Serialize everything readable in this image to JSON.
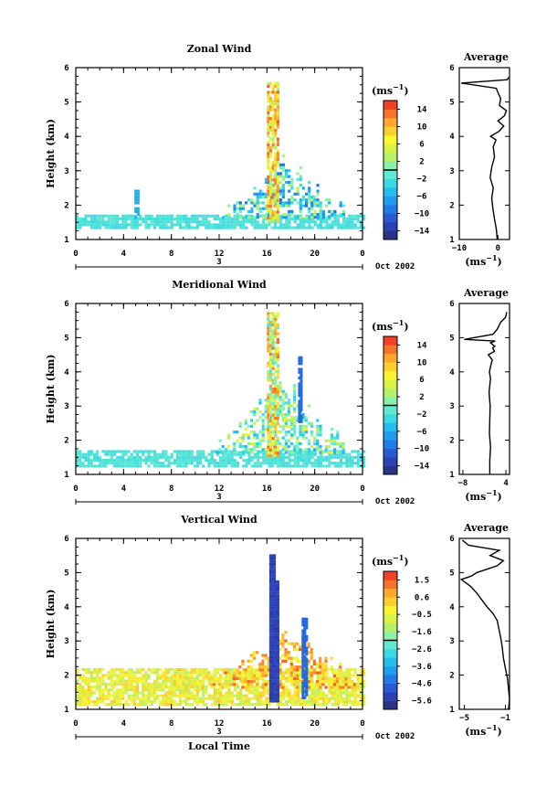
{
  "chart_data": [
    {
      "type": "heatmap",
      "title": "Zonal Wind",
      "ylabel": "Height (km)",
      "xlabel": "",
      "xlim": [
        0,
        24
      ],
      "ylim": [
        1,
        6
      ],
      "x_ticks": [
        "0",
        "4",
        "8",
        "12",
        "16",
        "20",
        "0"
      ],
      "y_ticks": [
        "1",
        "2",
        "3",
        "4",
        "5",
        "6"
      ],
      "date_day": "3",
      "date_label": "Oct 2002",
      "colorbar": {
        "unit": "(ms",
        "unit_sup": "−1",
        "unit_close": ")",
        "labels": [
          "14",
          "10",
          "6",
          "2",
          "−2",
          "−6",
          "−10",
          "−14"
        ],
        "range": [
          -16,
          16
        ]
      },
      "approx_field": {
        "base_layer": {
          "x": [
            0,
            24
          ],
          "y": [
            1.3,
            1.65
          ],
          "value": -2
        },
        "convective_region": {
          "x": [
            11.5,
            22.5
          ],
          "top_km": 3.5,
          "value_range": [
            -10,
            4
          ]
        },
        "isolated_patch": {
          "x": [
            4.9,
            5.3
          ],
          "y": [
            1.6,
            2.4
          ],
          "value": -6
        },
        "core_column": {
          "x": [
            16.0,
            16.9
          ],
          "y": [
            1.5,
            5.5
          ],
          "value_range": [
            2,
            14
          ]
        }
      },
      "average_profile": {
        "title": "Average",
        "xlabel": "(ms",
        "xlabel_sup": "−1",
        "xlabel_close": ")",
        "xlim": [
          -10,
          3
        ],
        "x_ticks": [
          "−10",
          "0"
        ],
        "y_ticks": [
          "1",
          "2",
          "3",
          "4",
          "5",
          "6"
        ],
        "ylim": [
          1,
          6
        ],
        "x": [
          -0.2,
          -0.4,
          -0.9,
          -1.3,
          -1.6,
          -1.2,
          -2.0,
          -1.6,
          -0.9,
          -1.2,
          -0.5,
          -1.9,
          0.3,
          1.5,
          0.0,
          1.7,
          2.2,
          0.4,
          0.7,
          -0.1,
          -0.4,
          -9.5,
          2.4,
          2.8
        ],
        "y": [
          1.0,
          1.3,
          1.6,
          1.9,
          2.2,
          2.5,
          2.8,
          3.1,
          3.4,
          3.7,
          3.9,
          4.0,
          4.15,
          4.3,
          4.45,
          4.6,
          4.75,
          4.9,
          5.1,
          5.3,
          5.4,
          5.55,
          5.65,
          5.72
        ]
      }
    },
    {
      "type": "heatmap",
      "title": "Meridional Wind",
      "ylabel": "Height (km)",
      "xlabel": "",
      "xlim": [
        0,
        24
      ],
      "ylim": [
        1,
        6
      ],
      "x_ticks": [
        "0",
        "4",
        "8",
        "12",
        "16",
        "20",
        "0"
      ],
      "y_ticks": [
        "1",
        "2",
        "3",
        "4",
        "5",
        "6"
      ],
      "date_day": "3",
      "date_label": "Oct 2002",
      "colorbar": {
        "unit": "(ms",
        "unit_sup": "−1",
        "unit_close": ")",
        "labels": [
          "14",
          "10",
          "6",
          "2",
          "−2",
          "−6",
          "−10",
          "−14"
        ],
        "range": [
          -16,
          16
        ]
      },
      "approx_field": {
        "base_layer": {
          "x": [
            0,
            24
          ],
          "y": [
            1.2,
            1.7
          ],
          "value": -2
        },
        "convective_region": {
          "x": [
            11.0,
            22.5
          ],
          "top_km": 4.0,
          "value_range": [
            -6,
            6
          ]
        },
        "core_column": {
          "x": [
            16.0,
            16.8
          ],
          "y": [
            1.5,
            5.7
          ],
          "value_range": [
            -2,
            14
          ]
        },
        "blue_streak": {
          "x": [
            18.6,
            18.9
          ],
          "y": [
            2.5,
            4.4
          ],
          "value": -10
        }
      },
      "average_profile": {
        "title": "Average",
        "xlabel": "(ms",
        "xlabel_sup": "−1",
        "xlabel_close": ")",
        "xlim": [
          -9,
          5
        ],
        "x_ticks": [
          "−8",
          "4"
        ],
        "y_ticks": [
          "1",
          "2",
          "3",
          "4",
          "5",
          "6"
        ],
        "ylim": [
          1,
          6
        ],
        "x": [
          -0.5,
          -0.5,
          -0.3,
          -0.6,
          -0.5,
          -0.4,
          -0.7,
          -0.3,
          -0.6,
          -0.2,
          0.2,
          -0.9,
          0.8,
          0.3,
          0.9,
          -0.3,
          1.0,
          -7.6,
          0.4,
          1.6,
          2.5,
          3.9,
          4.2
        ],
        "y": [
          1.0,
          1.4,
          1.8,
          2.2,
          2.6,
          3.0,
          3.4,
          3.8,
          4.0,
          4.2,
          4.35,
          4.5,
          4.6,
          4.7,
          4.75,
          4.85,
          4.9,
          4.95,
          5.1,
          5.25,
          5.45,
          5.6,
          5.75
        ]
      }
    },
    {
      "type": "heatmap",
      "title": "Vertical Wind",
      "ylabel": "Height (km)",
      "xlabel": "Local Time",
      "xlim": [
        0,
        24
      ],
      "ylim": [
        1,
        6
      ],
      "x_ticks": [
        "0",
        "4",
        "8",
        "12",
        "16",
        "20",
        "0"
      ],
      "y_ticks": [
        "1",
        "2",
        "3",
        "4",
        "5",
        "6"
      ],
      "date_day": "3",
      "date_label": "Oct 2002",
      "colorbar": {
        "unit": "(ms",
        "unit_sup": "−1",
        "unit_close": ")",
        "labels": [
          "1.5",
          "0.6",
          "−0.5",
          "−1.6",
          "−2.6",
          "−3.6",
          "−4.6",
          "−5.6"
        ],
        "range": [
          -6.1,
          2.0
        ]
      },
      "approx_field": {
        "base_layer": {
          "x": [
            0,
            24
          ],
          "y": [
            1.1,
            2.2
          ],
          "value": -0.5
        },
        "convective_region": {
          "x": [
            10.5,
            23.5
          ],
          "top_km": 3.6,
          "value_range": [
            -0.5,
            1.5
          ]
        },
        "downdraft_column": {
          "x": [
            16.2,
            16.8
          ],
          "y": [
            1.2,
            5.5
          ],
          "value": -5.6
        },
        "blue_streak": {
          "x": [
            18.9,
            19.2
          ],
          "y": [
            1.3,
            3.6
          ],
          "value": -4.6
        }
      },
      "average_profile": {
        "title": "Average",
        "xlabel": "(ms",
        "xlabel_sup": "−1",
        "xlabel_close": ")",
        "xlim": [
          -5.5,
          -0.6
        ],
        "x_ticks": [
          "−5",
          "−1"
        ],
        "y_ticks": [
          "1",
          "2",
          "3",
          "4",
          "5",
          "6"
        ],
        "ylim": [
          1,
          6
        ],
        "x": [
          -0.7,
          -0.6,
          -0.7,
          -0.8,
          -1.0,
          -1.2,
          -1.3,
          -1.4,
          -1.6,
          -1.8,
          -2.2,
          -2.8,
          -3.3,
          -3.8,
          -4.4,
          -5.3,
          -4.3,
          -3.8,
          -2.8,
          -1.8,
          -1.2,
          -2.5,
          -1.6,
          -4.6,
          -5.2
        ],
        "y": [
          1.0,
          1.3,
          1.6,
          1.9,
          2.2,
          2.5,
          2.8,
          3.0,
          3.3,
          3.6,
          3.8,
          4.0,
          4.2,
          4.4,
          4.6,
          4.8,
          4.9,
          5.0,
          5.1,
          5.2,
          5.35,
          5.5,
          5.65,
          5.8,
          5.95
        ]
      }
    }
  ]
}
